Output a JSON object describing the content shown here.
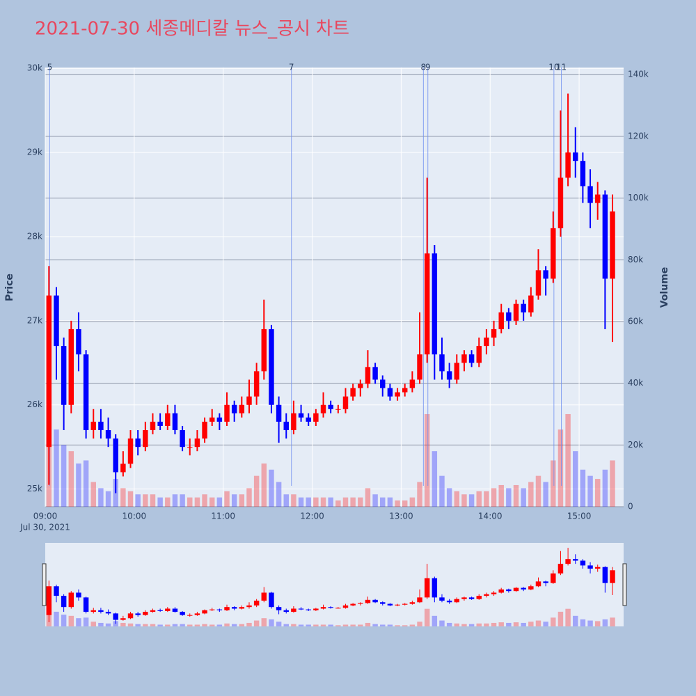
{
  "chart_data": {
    "type": "candlestick",
    "title": "2021-07-30 세종메디칼 뉴스_공시 차트",
    "date_label": "Jul 30, 2021",
    "ylabel": "Price",
    "y2label": "Volume",
    "x": [
      "09:00",
      "09:05",
      "09:10",
      "09:15",
      "09:20",
      "09:25",
      "09:30",
      "09:35",
      "09:40",
      "09:45",
      "09:50",
      "09:55",
      "10:00",
      "10:05",
      "10:10",
      "10:15",
      "10:20",
      "10:25",
      "10:30",
      "10:35",
      "10:40",
      "10:45",
      "10:50",
      "10:55",
      "11:00",
      "11:05",
      "11:10",
      "11:15",
      "11:20",
      "11:25",
      "11:30",
      "11:35",
      "11:40",
      "11:45",
      "11:50",
      "11:55",
      "12:00",
      "12:05",
      "12:10",
      "12:15",
      "12:20",
      "12:25",
      "12:30",
      "12:35",
      "12:40",
      "12:45",
      "12:50",
      "12:55",
      "13:00",
      "13:05",
      "13:10",
      "13:15",
      "13:20",
      "13:25",
      "13:30",
      "13:35",
      "13:40",
      "13:45",
      "13:50",
      "13:55",
      "14:00",
      "14:05",
      "14:10",
      "14:15",
      "14:20",
      "14:25",
      "14:30",
      "14:35",
      "14:40",
      "14:45",
      "14:50",
      "14:55",
      "15:00",
      "15:05",
      "15:10",
      "15:15",
      "15:20"
    ],
    "open": [
      25500,
      27300,
      26700,
      26000,
      26900,
      26600,
      25700,
      25800,
      25700,
      25600,
      25200,
      25300,
      25600,
      25500,
      25700,
      25800,
      25750,
      25900,
      25700,
      25500,
      25500,
      25600,
      25800,
      25850,
      25800,
      26000,
      25900,
      26000,
      26100,
      26400,
      26900,
      26000,
      25800,
      25700,
      25900,
      25850,
      25800,
      25900,
      26000,
      25950,
      25950,
      26100,
      26200,
      26250,
      26450,
      26300,
      26200,
      26100,
      26150,
      26200,
      26300,
      26600,
      27800,
      26600,
      26400,
      26300,
      26500,
      26600,
      26500,
      26700,
      26800,
      26900,
      27100,
      27000,
      27200,
      27100,
      27300,
      27600,
      27500,
      28100,
      28700,
      29000,
      28900,
      28600,
      28400,
      28500,
      27500
    ],
    "high": [
      27650,
      27400,
      26800,
      27000,
      27100,
      26650,
      25950,
      25950,
      25850,
      25650,
      25450,
      25700,
      25700,
      25800,
      25900,
      25900,
      26000,
      26000,
      25750,
      25600,
      25700,
      25850,
      25950,
      25900,
      26150,
      26050,
      26100,
      26300,
      26500,
      27250,
      26950,
      26100,
      25900,
      26050,
      26000,
      25900,
      25950,
      26150,
      26050,
      26000,
      26200,
      26250,
      26300,
      26650,
      26500,
      26350,
      26250,
      26200,
      26250,
      26400,
      27100,
      28700,
      27900,
      26800,
      26500,
      26600,
      26650,
      26650,
      26800,
      26900,
      27000,
      27200,
      27150,
      27250,
      27250,
      27400,
      27850,
      27650,
      28300,
      29500,
      29700,
      29300,
      29000,
      28800,
      28650,
      28550,
      28500
    ],
    "low": [
      25050,
      26300,
      25700,
      25900,
      26400,
      25600,
      25600,
      25600,
      25500,
      24950,
      25150,
      25250,
      25400,
      25450,
      25650,
      25700,
      25700,
      25650,
      25450,
      25400,
      25450,
      25550,
      25750,
      25700,
      25750,
      25800,
      25850,
      25900,
      26000,
      26300,
      25900,
      25550,
      25600,
      25650,
      25800,
      25750,
      25750,
      25850,
      25900,
      25900,
      25900,
      26050,
      26100,
      26200,
      26250,
      26100,
      26050,
      26050,
      26100,
      26150,
      26250,
      26500,
      26300,
      26300,
      26200,
      26250,
      26400,
      26450,
      26450,
      26600,
      26700,
      26850,
      26900,
      26950,
      27000,
      27050,
      27250,
      27300,
      27450,
      28000,
      28600,
      28700,
      28400,
      28100,
      28200,
      26900,
      26750
    ],
    "close": [
      27300,
      26700,
      26000,
      26900,
      26600,
      25700,
      25800,
      25700,
      25600,
      25200,
      25300,
      25600,
      25500,
      25700,
      25800,
      25750,
      25900,
      25700,
      25500,
      25500,
      25600,
      25800,
      25850,
      25800,
      26000,
      25900,
      26000,
      26100,
      26400,
      26900,
      26000,
      25800,
      25700,
      25900,
      25850,
      25800,
      25900,
      26000,
      25950,
      25950,
      26100,
      26200,
      26250,
      26450,
      26300,
      26200,
      26100,
      26150,
      26200,
      26300,
      26600,
      27800,
      26600,
      26400,
      26300,
      26500,
      26600,
      26500,
      26700,
      26800,
      26900,
      27100,
      27000,
      27200,
      27100,
      27300,
      27600,
      27500,
      28100,
      28700,
      29000,
      28900,
      28600,
      28400,
      28500,
      27500,
      28300
    ],
    "volume": [
      38000,
      25000,
      20000,
      18000,
      14000,
      15000,
      8000,
      6000,
      5000,
      9000,
      6000,
      5000,
      4000,
      4000,
      4000,
      3000,
      3000,
      4000,
      4000,
      3000,
      3000,
      4000,
      3000,
      3000,
      5000,
      4000,
      4000,
      6000,
      10000,
      14000,
      12000,
      8000,
      4000,
      4000,
      3000,
      3000,
      3000,
      3000,
      3000,
      2000,
      3000,
      3000,
      3000,
      6000,
      4000,
      3000,
      3000,
      2000,
      2000,
      3000,
      8000,
      30000,
      18000,
      10000,
      6000,
      5000,
      4000,
      4000,
      5000,
      5000,
      6000,
      7000,
      6000,
      7000,
      6000,
      8000,
      10000,
      8000,
      15000,
      25000,
      30000,
      18000,
      12000,
      10000,
      9000,
      12000,
      15000
    ],
    "up_color": "#ff0000",
    "down_color": "#0000ff",
    "xlim": [
      "09:00",
      "15:30"
    ],
    "xticks": [
      "09:00",
      "10:00",
      "11:00",
      "12:00",
      "13:00",
      "14:00",
      "15:00"
    ],
    "ylim": [
      24790,
      30010
    ],
    "yticks": [
      {
        "value": 25000,
        "label": "25k"
      },
      {
        "value": 26000,
        "label": "26k"
      },
      {
        "value": 27000,
        "label": "27k"
      },
      {
        "value": 28000,
        "label": "28k"
      },
      {
        "value": 29000,
        "label": "29k"
      },
      {
        "value": 30000,
        "label": "30k"
      }
    ],
    "y2lim": [
      0,
      142300
    ],
    "y2ticks": [
      0,
      {
        "value": 20000,
        "label": "20k"
      },
      {
        "value": 40000,
        "label": "40k"
      },
      {
        "value": 60000,
        "label": "60k"
      },
      {
        "value": 80000,
        "label": "80k"
      },
      {
        "value": 100000,
        "label": "100k"
      },
      {
        "value": 120000,
        "label": "120k"
      },
      {
        "value": 140000,
        "label": "140k"
      }
    ],
    "news": [
      {
        "label": "5",
        "x": "09:03"
      },
      {
        "label": "7",
        "x": "11:46"
      },
      {
        "label": "8",
        "x": "13:15"
      },
      {
        "label": "9",
        "x": "13:18"
      },
      {
        "label": "10",
        "x": "14:43"
      },
      {
        "label": "11",
        "x": "14:48"
      }
    ],
    "grid": true,
    "rangeslider": true
  }
}
